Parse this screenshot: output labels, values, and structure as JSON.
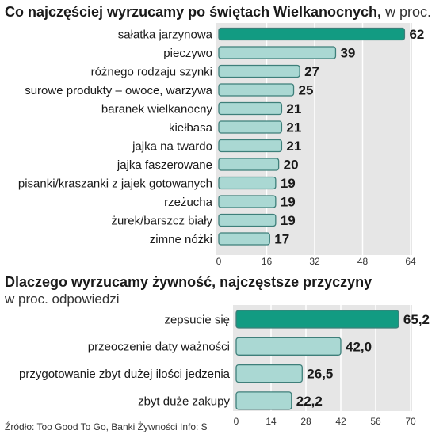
{
  "colors": {
    "accent": "#129b82",
    "bar": "#aad8d3",
    "bar_border": "#3e7f7a",
    "panel_bg": "#e6e6e6",
    "grid": "#ffffff",
    "text": "#1a1a1a"
  },
  "chart1": {
    "title_bold": "Co najczęściej wyrzucamy po świętach Wielkanocnych,",
    "title_light": " w proc."
  },
  "chart2": {
    "title": "Dlaczego wyrzucamy żywność, najczęstsze przyczyny",
    "subtitle": "w proc. odpowiedzi"
  },
  "source": "Źródło: Too Good To Go, Banki Żywności  Info: S",
  "chart_data": [
    {
      "type": "bar",
      "orientation": "horizontal",
      "title": "Co najczęściej wyrzucamy po świętach Wielkanocnych, w proc.",
      "categories": [
        "sałatka jarzynowa",
        "pieczywo",
        "różnego rodzaju szynki",
        "surowe produkty – owoce, warzywa",
        "baranek wielkanocny",
        "kiełbasa",
        "jajka na twardo",
        "jajka faszerowane",
        "pisanki/kraszanki z jajek gotowanych",
        "rzeżucha",
        "żurek/barszcz biały",
        "zimne nóżki"
      ],
      "values": [
        62,
        39,
        27,
        25,
        21,
        21,
        21,
        20,
        19,
        19,
        19,
        17
      ],
      "value_labels": [
        "62",
        "39",
        "27",
        "25",
        "21",
        "21",
        "21",
        "20",
        "19",
        "19",
        "19",
        "17"
      ],
      "ticks": [
        "0",
        "16",
        "32",
        "48",
        "64"
      ],
      "xlim": [
        0,
        64
      ],
      "highlight_index": 0,
      "grid": true
    },
    {
      "type": "bar",
      "orientation": "horizontal",
      "title": "Dlaczego wyrzucamy żywność, najczęstsze przyczyny",
      "subtitle": "w proc. odpowiedzi",
      "categories": [
        "zepsucie się",
        "przeoczenie daty ważności",
        "przygotowanie zbyt dużej ilości jedzenia",
        "zbyt duże zakupy"
      ],
      "values": [
        65.2,
        42.0,
        26.5,
        22.2
      ],
      "value_labels": [
        "65,2",
        "42,0",
        "26,5",
        "22,2"
      ],
      "ticks": [
        "0",
        "14",
        "28",
        "42",
        "56",
        "70"
      ],
      "xlim": [
        0,
        70
      ],
      "highlight_index": 0,
      "grid": true
    }
  ]
}
